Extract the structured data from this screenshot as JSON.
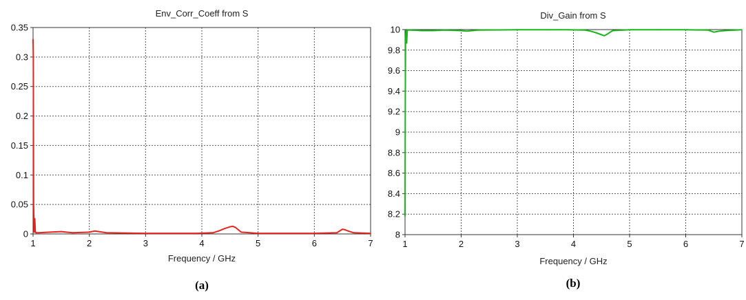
{
  "chart_data": [
    {
      "type": "line",
      "title": "Env_Corr_Coeff from S",
      "xlabel": "Frequency / GHz",
      "ylabel": "",
      "panel_label": "(a)",
      "xlim": [
        1,
        7
      ],
      "ylim": [
        0,
        0.35
      ],
      "xticks": [
        "1",
        "2",
        "3",
        "4",
        "5",
        "6",
        "7"
      ],
      "yticks": [
        "0",
        "0.05",
        "0.1",
        "0.15",
        "0.2",
        "0.25",
        "0.3",
        "0.35"
      ],
      "grid": true,
      "series": [
        {
          "color": "#e8231c",
          "x": [
            1.0,
            1.005,
            1.01,
            1.02,
            1.03,
            1.04,
            1.05,
            1.1,
            1.3,
            1.5,
            1.7,
            2.0,
            2.1,
            2.3,
            3.0,
            3.6,
            3.9,
            4.2,
            4.3,
            4.4,
            4.5,
            4.55,
            4.6,
            4.7,
            5.0,
            5.5,
            6.0,
            6.4,
            6.5,
            6.55,
            6.6,
            6.7,
            7.0
          ],
          "values": [
            0.33,
            0.3,
            0.05,
            0.003,
            0.026,
            0.004,
            0.002,
            0.002,
            0.003,
            0.004,
            0.002,
            0.003,
            0.005,
            0.002,
            0.001,
            0.001,
            0.001,
            0.002,
            0.005,
            0.009,
            0.012,
            0.013,
            0.011,
            0.003,
            0.001,
            0.001,
            0.001,
            0.002,
            0.008,
            0.007,
            0.005,
            0.002,
            0.001
          ]
        }
      ]
    },
    {
      "type": "line",
      "title": "Div_Gain from S",
      "xlabel": "Frequency / GHz",
      "ylabel": "",
      "panel_label": "(b)",
      "xlim": [
        1,
        7
      ],
      "ylim": [
        8,
        10
      ],
      "xticks": [
        "1",
        "2",
        "3",
        "4",
        "5",
        "6",
        "7"
      ],
      "yticks": [
        "8",
        "8.2",
        "8.4",
        "8.6",
        "8.8",
        "9",
        "9.2",
        "9.4",
        "9.6",
        "9.8",
        "10"
      ],
      "grid": true,
      "series": [
        {
          "color": "#19b51a",
          "x": [
            1.0,
            1.005,
            1.01,
            1.02,
            1.03,
            1.04,
            1.05,
            1.1,
            1.3,
            1.5,
            1.7,
            2.0,
            2.1,
            2.3,
            3.0,
            3.6,
            3.9,
            4.2,
            4.3,
            4.4,
            4.5,
            4.55,
            4.6,
            4.7,
            5.0,
            5.5,
            6.0,
            6.4,
            6.5,
            6.55,
            6.6,
            6.7,
            7.0
          ],
          "values": [
            8.18,
            9.35,
            9.92,
            9.99,
            9.87,
            9.99,
            9.995,
            9.995,
            9.99,
            9.99,
            9.995,
            9.99,
            9.985,
            9.995,
            9.998,
            9.998,
            9.998,
            9.995,
            9.985,
            9.97,
            9.95,
            9.94,
            9.955,
            9.99,
            9.998,
            9.998,
            9.998,
            9.995,
            9.975,
            9.98,
            9.985,
            9.99,
            9.998
          ]
        }
      ]
    }
  ]
}
